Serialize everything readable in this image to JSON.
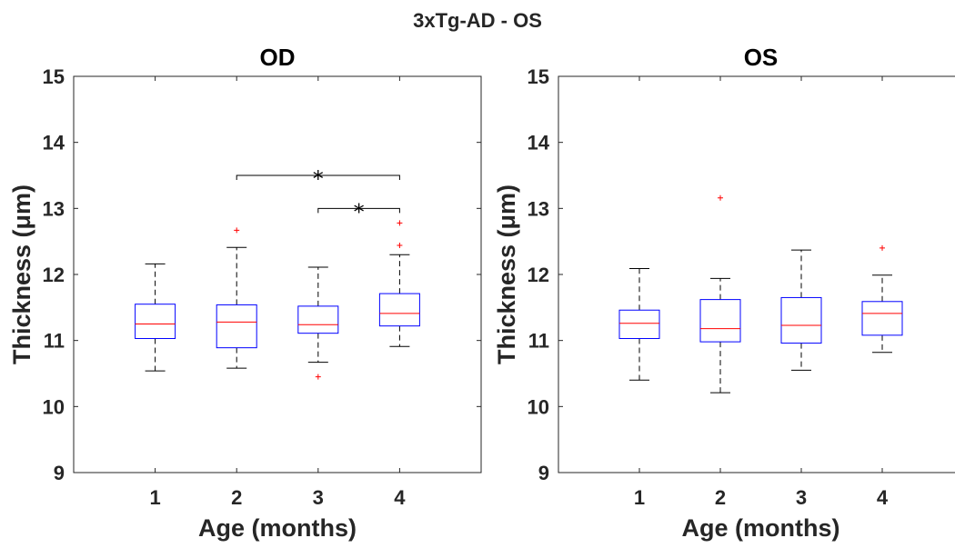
{
  "figure_title": "3xTg-AD - OS",
  "chart_data": [
    {
      "type": "box",
      "title": "OD",
      "xlabel": "Age (months)",
      "ylabel": "Thickness (μm)",
      "ylim": [
        9,
        15
      ],
      "yticks": [
        "9",
        "10",
        "11",
        "12",
        "13",
        "14",
        "15"
      ],
      "categories": [
        "1",
        "2",
        "3",
        "4"
      ],
      "colors": {
        "box": "#0000ff",
        "median": "#ff0000",
        "whisker": "#000000",
        "outlier": "#ff0000"
      },
      "boxes": [
        {
          "category": "1",
          "whisker_low": 10.54,
          "q1": 11.03,
          "median": 11.25,
          "q3": 11.55,
          "whisker_high": 12.16,
          "outliers": []
        },
        {
          "category": "2",
          "whisker_low": 10.58,
          "q1": 10.89,
          "median": 11.28,
          "q3": 11.54,
          "whisker_high": 12.41,
          "outliers": [
            12.67
          ]
        },
        {
          "category": "3",
          "whisker_low": 10.67,
          "q1": 11.11,
          "median": 11.24,
          "q3": 11.52,
          "whisker_high": 12.11,
          "outliers": [
            10.45
          ]
        },
        {
          "category": "4",
          "whisker_low": 10.91,
          "q1": 11.22,
          "median": 11.41,
          "q3": 11.71,
          "whisker_high": 12.3,
          "outliers": [
            12.44,
            12.78
          ]
        }
      ],
      "significance": [
        {
          "from": "2",
          "to": "4",
          "y": 13.5,
          "label": "*"
        },
        {
          "from": "3",
          "to": "4",
          "y": 13.0,
          "label": "*"
        }
      ]
    },
    {
      "type": "box",
      "title": "OS",
      "xlabel": "Age (months)",
      "ylabel": "Thickness (μm)",
      "ylim": [
        9,
        15
      ],
      "yticks": [
        "9",
        "10",
        "11",
        "12",
        "13",
        "14",
        "15"
      ],
      "categories": [
        "1",
        "2",
        "3",
        "4"
      ],
      "colors": {
        "box": "#0000ff",
        "median": "#ff0000",
        "whisker": "#000000",
        "outlier": "#ff0000"
      },
      "boxes": [
        {
          "category": "1",
          "whisker_low": 10.4,
          "q1": 11.03,
          "median": 11.26,
          "q3": 11.46,
          "whisker_high": 12.09,
          "outliers": []
        },
        {
          "category": "2",
          "whisker_low": 10.21,
          "q1": 10.98,
          "median": 11.18,
          "q3": 11.62,
          "whisker_high": 11.94,
          "outliers": [
            13.16
          ]
        },
        {
          "category": "3",
          "whisker_low": 10.55,
          "q1": 10.96,
          "median": 11.23,
          "q3": 11.65,
          "whisker_high": 12.37,
          "outliers": []
        },
        {
          "category": "4",
          "whisker_low": 10.82,
          "q1": 11.08,
          "median": 11.41,
          "q3": 11.59,
          "whisker_high": 11.99,
          "outliers": [
            12.4
          ]
        }
      ],
      "significance": []
    }
  ]
}
